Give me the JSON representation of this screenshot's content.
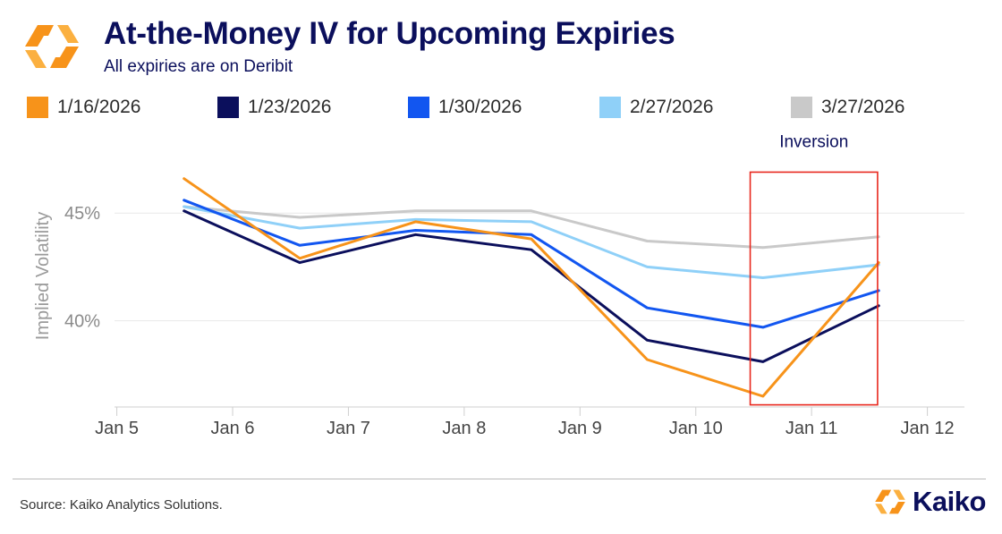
{
  "header": {
    "title": "At-the-Money IV for Upcoming Expiries",
    "subtitle": "All expiries are on Deribit"
  },
  "legend": [
    {
      "label": "1/16/2026",
      "color": "#f7931a"
    },
    {
      "label": "1/23/2026",
      "color": "#0b0f5c"
    },
    {
      "label": "1/30/2026",
      "color": "#1256f0"
    },
    {
      "label": "2/27/2026",
      "color": "#8fd0f8"
    },
    {
      "label": "3/27/2026",
      "color": "#c9c9c9"
    }
  ],
  "chart_data": {
    "type": "line",
    "title": "At-the-Money IV for Upcoming Expiries",
    "xlabel": "",
    "ylabel": "Implied Volatility",
    "x_ticks": [
      "Jan 5",
      "Jan 6",
      "Jan 7",
      "Jan 8",
      "Jan 9",
      "Jan 10",
      "Jan 11",
      "Jan 12"
    ],
    "x_tick_values": [
      5,
      6,
      7,
      8,
      9,
      10,
      11,
      12
    ],
    "xlim": [
      4.98,
      12.32
    ],
    "y_ticks": [
      "40%",
      "45%"
    ],
    "y_tick_values": [
      40,
      45
    ],
    "ylim": [
      36,
      47.5
    ],
    "x": [
      5.58,
      6.58,
      7.58,
      8.58,
      9.58,
      10.58,
      11.58
    ],
    "series": [
      {
        "name": "1/16/2026",
        "color": "#f7931a",
        "values": [
          46.6,
          42.9,
          44.6,
          43.8,
          38.2,
          36.5,
          42.7
        ]
      },
      {
        "name": "1/23/2026",
        "color": "#0b0f5c",
        "values": [
          45.1,
          42.7,
          44.0,
          43.3,
          39.1,
          38.1,
          40.7
        ]
      },
      {
        "name": "1/30/2026",
        "color": "#1256f0",
        "values": [
          45.6,
          43.5,
          44.2,
          44.0,
          40.6,
          39.7,
          41.4
        ]
      },
      {
        "name": "2/27/2026",
        "color": "#8fd0f8",
        "values": [
          45.3,
          44.3,
          44.7,
          44.6,
          42.5,
          42.0,
          42.6
        ]
      },
      {
        "name": "3/27/2026",
        "color": "#c9c9c9",
        "values": [
          45.3,
          44.8,
          45.1,
          45.1,
          43.7,
          43.4,
          43.9
        ]
      }
    ],
    "annotation": {
      "text": "Inversion",
      "x_range": [
        10.47,
        11.57
      ],
      "y_range": [
        36.1,
        46.9
      ]
    },
    "grid": true
  },
  "footer": {
    "source": "Source: Kaiko Analytics Solutions.",
    "brand": "Kaiko"
  }
}
